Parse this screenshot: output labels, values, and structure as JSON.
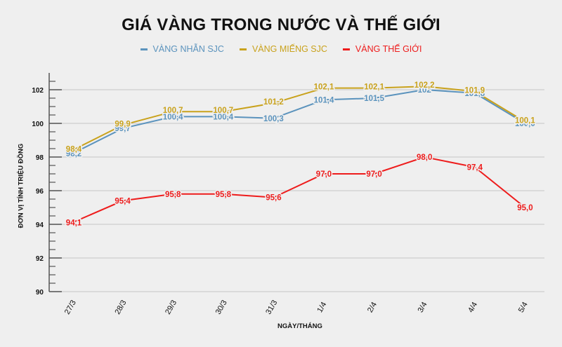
{
  "chart_data": {
    "type": "line",
    "title": "GIÁ VÀNG TRONG NƯỚC VÀ THẾ GIỚI",
    "xlabel": "NGÀY/THÁNG",
    "ylabel": "ĐƠN VỊ TÍNH TRIỆU ĐỒNG",
    "categories": [
      "27/3",
      "28/3",
      "29/3",
      "30/3",
      "31/3",
      "1/4",
      "2/4",
      "3/4",
      "4/4",
      "5/4"
    ],
    "ylim": [
      90,
      102.5
    ],
    "yticks": [
      90,
      92,
      94,
      96,
      98,
      100,
      102
    ],
    "grid": true,
    "legend_position": "top",
    "series": [
      {
        "name": "VÀNG NHẪN SJC",
        "color": "#5b93bd",
        "values": [
          98.2,
          99.7,
          100.4,
          100.4,
          100.3,
          101.4,
          101.5,
          102.0,
          101.8,
          100.0
        ],
        "labels": [
          "98,2",
          "99,7",
          "100,4",
          "100,4",
          "100,3",
          "101,4",
          "101,5",
          "102",
          "101,8",
          "100,0"
        ]
      },
      {
        "name": "VÀNG MIẾNG SJC",
        "color": "#c9a21c",
        "values": [
          98.4,
          99.9,
          100.7,
          100.7,
          101.2,
          102.1,
          102.1,
          102.2,
          101.9,
          100.1
        ],
        "labels": [
          "98,4",
          "99,9",
          "100,7",
          "100,7",
          "101,2",
          "102,1",
          "102,1",
          "102,2",
          "101,9",
          "100,1"
        ]
      },
      {
        "name": "VÀNG THẾ GIỚI",
        "color": "#ee1c1c",
        "values": [
          94.1,
          95.4,
          95.8,
          95.8,
          95.6,
          97.0,
          97.0,
          98.0,
          97.4,
          95.0
        ],
        "labels": [
          "94,1",
          "95,4",
          "95,8",
          "95,8",
          "95,6",
          "97,0",
          "97,0",
          "98,0",
          "97,4",
          "95,0"
        ]
      }
    ]
  }
}
